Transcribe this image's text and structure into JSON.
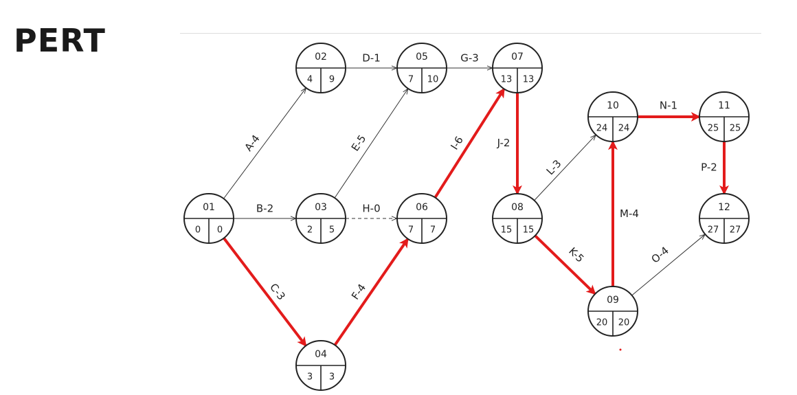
{
  "title": "PERT",
  "colors": {
    "critical": "#e31b1b",
    "normal": "#333333",
    "text": "#222222"
  },
  "nodes": [
    {
      "id": "01",
      "es": "0",
      "lf": "0"
    },
    {
      "id": "02",
      "es": "4",
      "lf": "9"
    },
    {
      "id": "03",
      "es": "2",
      "lf": "5"
    },
    {
      "id": "04",
      "es": "3",
      "lf": "3"
    },
    {
      "id": "05",
      "es": "7",
      "lf": "10"
    },
    {
      "id": "06",
      "es": "7",
      "lf": "7"
    },
    {
      "id": "07",
      "es": "13",
      "lf": "13"
    },
    {
      "id": "08",
      "es": "15",
      "lf": "15"
    },
    {
      "id": "09",
      "es": "20",
      "lf": "20"
    },
    {
      "id": "10",
      "es": "24",
      "lf": "24"
    },
    {
      "id": "11",
      "es": "25",
      "lf": "25"
    },
    {
      "id": "12",
      "es": "27",
      "lf": "27"
    }
  ],
  "activities": [
    {
      "label": "A-4",
      "from": "01",
      "to": "02",
      "critical": false,
      "dummy": false
    },
    {
      "label": "B-2",
      "from": "01",
      "to": "03",
      "critical": false,
      "dummy": false
    },
    {
      "label": "C-3",
      "from": "01",
      "to": "04",
      "critical": true,
      "dummy": false
    },
    {
      "label": "D-1",
      "from": "02",
      "to": "05",
      "critical": false,
      "dummy": false
    },
    {
      "label": "E-5",
      "from": "03",
      "to": "05",
      "critical": false,
      "dummy": false
    },
    {
      "label": "H-0",
      "from": "03",
      "to": "06",
      "critical": false,
      "dummy": true
    },
    {
      "label": "F-4",
      "from": "04",
      "to": "06",
      "critical": true,
      "dummy": false
    },
    {
      "label": "G-3",
      "from": "05",
      "to": "07",
      "critical": false,
      "dummy": false
    },
    {
      "label": "I-6",
      "from": "06",
      "to": "07",
      "critical": true,
      "dummy": false
    },
    {
      "label": "J-2",
      "from": "07",
      "to": "08",
      "critical": true,
      "dummy": false
    },
    {
      "label": "L-3",
      "from": "08",
      "to": "10",
      "critical": false,
      "dummy": false
    },
    {
      "label": "K-5",
      "from": "08",
      "to": "09",
      "critical": true,
      "dummy": false
    },
    {
      "label": "M-4",
      "from": "09",
      "to": "10",
      "critical": true,
      "dummy": false
    },
    {
      "label": "O-4",
      "from": "09",
      "to": "12",
      "critical": false,
      "dummy": false
    },
    {
      "label": "N-1",
      "from": "10",
      "to": "11",
      "critical": true,
      "dummy": false
    },
    {
      "label": "P-2",
      "from": "11",
      "to": "12",
      "critical": true,
      "dummy": false
    }
  ]
}
